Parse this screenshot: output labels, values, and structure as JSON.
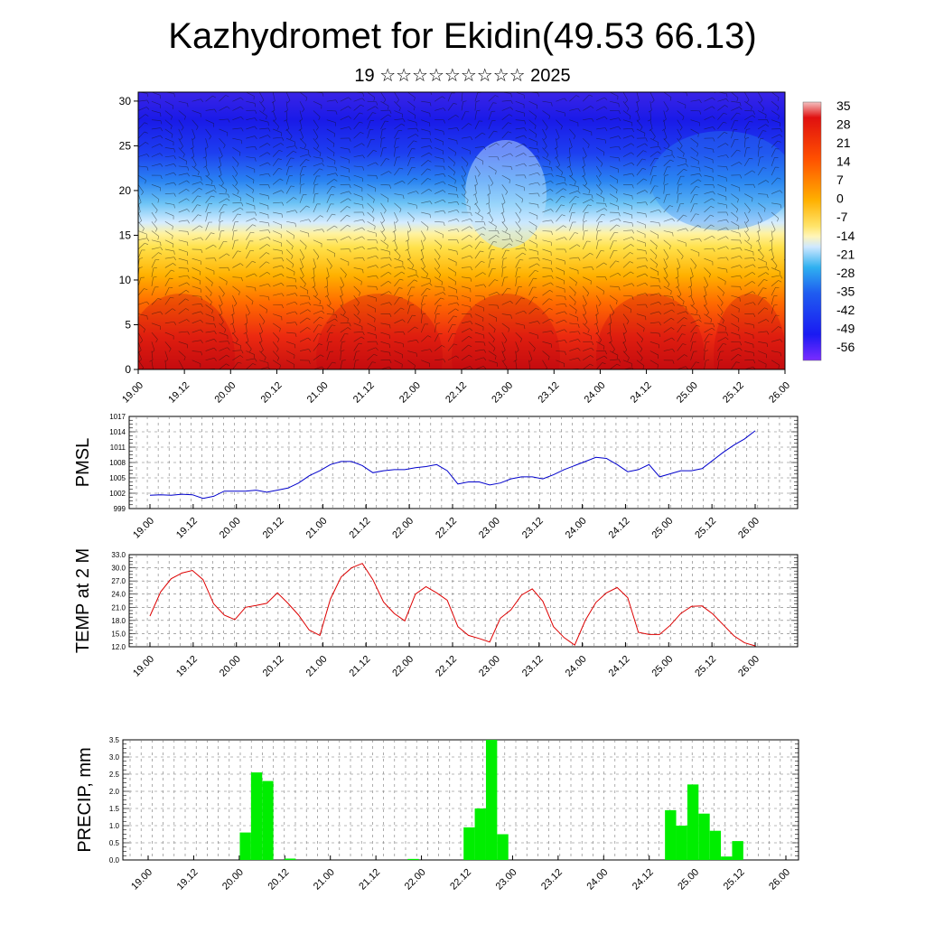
{
  "header": {
    "title": "Kazhydromet for Ekidin(49.53 66.13)",
    "subtitle": "19 ☆☆☆☆☆☆☆☆☆ 2025"
  },
  "time_labels": [
    "19.00",
    "19.12",
    "20.00",
    "20.12",
    "21.00",
    "21.12",
    "22.00",
    "22.12",
    "23.00",
    "23.12",
    "24.00",
    "24.12",
    "25.00",
    "25.12",
    "26.00"
  ],
  "chart_data": [
    {
      "type": "heatmap",
      "title": "",
      "xlabel": "",
      "ylabel": "",
      "x": [
        "19.00",
        "19.12",
        "20.00",
        "20.12",
        "21.00",
        "21.12",
        "22.00",
        "22.12",
        "23.00",
        "23.12",
        "24.00",
        "24.12",
        "25.00",
        "25.12",
        "26.00"
      ],
      "yticks": [
        0,
        5,
        10,
        15,
        20,
        25,
        30
      ],
      "ylim": [
        0,
        31
      ],
      "colorbar": {
        "labels": [
          35,
          28,
          21,
          14,
          7,
          0,
          -7,
          -14,
          -21,
          -28,
          -35,
          -42,
          -49,
          -56
        ],
        "range": [
          -60,
          38
        ],
        "colors": {
          "cold_extreme": "#7b2cff",
          "cold": "#1e1ef5",
          "cool": "#2ea7f2",
          "light": "#c8e6ff",
          "neutral": "#fff5b0",
          "warm": "#ffd21e",
          "hot": "#ff6a00",
          "very_hot": "#e01010",
          "hot_extreme": "#f2b0b0"
        }
      },
      "overlay": "wind-barbs"
    },
    {
      "type": "line",
      "ylabel": "PMSL",
      "ylim": [
        999,
        1017
      ],
      "yticks": [
        999,
        1002,
        1005,
        1008,
        1011,
        1014,
        1017
      ],
      "color": "#0000cc",
      "values": [
        1001.6,
        1001.7,
        1001.6,
        1001.8,
        1001.7,
        1001.0,
        1001.4,
        1002.4,
        1002.4,
        1002.4,
        1002.6,
        1002.2,
        1002.6,
        1003.0,
        1004.0,
        1005.4,
        1006.4,
        1007.6,
        1008.2,
        1008.2,
        1007.4,
        1006.0,
        1006.4,
        1006.6,
        1006.6,
        1007.0,
        1007.2,
        1007.6,
        1006.4,
        1003.8,
        1004.2,
        1004.2,
        1003.6,
        1004.0,
        1004.8,
        1005.2,
        1005.2,
        1004.8,
        1005.6,
        1006.6,
        1007.4,
        1008.2,
        1009.0,
        1008.8,
        1007.6,
        1006.2,
        1006.6,
        1007.6,
        1005.2,
        1005.8,
        1006.4,
        1006.4,
        1006.8,
        1008.4,
        1010.0,
        1011.4,
        1012.6,
        1014.2
      ]
    },
    {
      "type": "line",
      "ylabel": "TEMP at 2 M",
      "ylim": [
        12.0,
        33.0
      ],
      "yticks": [
        12.0,
        15.0,
        18.0,
        21.0,
        24.0,
        27.0,
        30.0,
        33.0
      ],
      "color": "#dd0000",
      "values": [
        19.0,
        24.5,
        27.5,
        28.8,
        29.4,
        27.3,
        21.8,
        19.2,
        18.2,
        21.0,
        21.4,
        21.9,
        24.3,
        21.9,
        19.2,
        15.8,
        14.6,
        22.9,
        27.9,
        30.0,
        31.0,
        27.3,
        22.2,
        19.6,
        17.9,
        24.0,
        25.7,
        24.3,
        22.6,
        16.6,
        14.6,
        13.9,
        13.1,
        18.5,
        20.4,
        23.8,
        25.2,
        22.4,
        16.6,
        14.1,
        12.4,
        18.0,
        22.1,
        24.3,
        25.5,
        23.2,
        15.3,
        14.8,
        14.8,
        16.9,
        19.6,
        21.2,
        21.3,
        19.5,
        17.0,
        14.5,
        12.9,
        12.2
      ]
    },
    {
      "type": "bar",
      "ylabel": "PRECIP, mm",
      "ylim": [
        0.0,
        3.5
      ],
      "yticks": [
        "0.0",
        "0.5",
        "1.0",
        "1.5",
        "2.0",
        "2.5",
        "3.0",
        "3.5"
      ],
      "color": "#00ee00",
      "values": [
        0,
        0,
        0,
        0,
        0,
        0,
        0,
        0,
        0,
        0.8,
        2.55,
        2.3,
        0,
        0.04,
        0,
        0,
        0,
        0,
        0,
        0,
        0,
        0,
        0,
        0,
        0.03,
        0,
        0,
        0,
        0,
        0.95,
        1.5,
        3.5,
        0.75,
        0,
        0,
        0,
        0,
        0,
        0,
        0,
        0,
        0,
        0,
        0,
        0,
        0,
        0,
        1.45,
        1.0,
        2.2,
        1.35,
        0.85,
        0.1,
        0.55,
        0,
        0,
        0,
        0
      ]
    }
  ]
}
